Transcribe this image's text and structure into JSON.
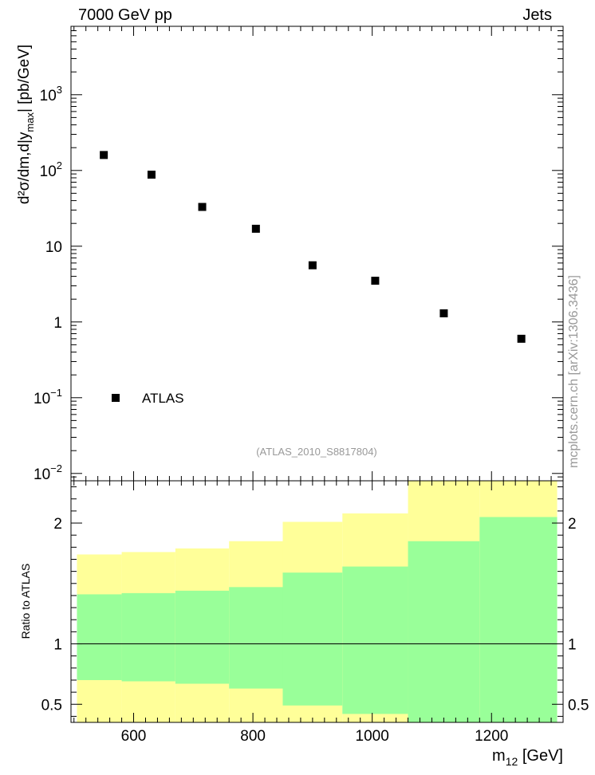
{
  "header": {
    "left": "7000 GeV pp",
    "right": "Jets"
  },
  "watermark": "mcplots.cern.ch [arXiv:1306.3436]",
  "colors": {
    "band_outer": "#ffff99",
    "band_inner": "#99ff99",
    "marker": "#000000"
  },
  "chart_data": [
    {
      "type": "scatter",
      "id": "main",
      "ylabel": {
        "main": "d²σ/dm,d|y",
        "sub": "max",
        "tail": "| [pb/GeV]"
      },
      "xlim": [
        495,
        1320
      ],
      "ylim": [
        0.008,
        8000
      ],
      "yscale": "log",
      "y_ticks": [
        {
          "value": 0.01,
          "base": "10",
          "exp": "−2"
        },
        {
          "value": 0.1,
          "base": "10",
          "exp": "−1"
        },
        {
          "value": 1,
          "base": "1",
          "exp": ""
        },
        {
          "value": 10,
          "base": "10",
          "exp": ""
        },
        {
          "value": 100,
          "base": "10",
          "exp": "2"
        },
        {
          "value": 1000,
          "base": "10",
          "exp": "3"
        }
      ],
      "series": [
        {
          "name": "ATLAS",
          "x": [
            550,
            630,
            715,
            805,
            900,
            1005,
            1120,
            1250
          ],
          "y": [
            160,
            88,
            33,
            17,
            5.6,
            3.5,
            1.3,
            0.6
          ]
        }
      ],
      "legend": {
        "label": "ATLAS",
        "position": "bottom-left"
      },
      "annotation": "(ATLAS_2010_S8817804)"
    },
    {
      "type": "area",
      "id": "ratio",
      "ylabel": "Ratio to ATLAS",
      "xlabel": {
        "main": "m",
        "sub": "12",
        "tail": " [GeV]"
      },
      "xlim": [
        495,
        1320
      ],
      "ylim": [
        0.35,
        2.35
      ],
      "x_ticks": [
        600,
        800,
        1000,
        1200
      ],
      "y_ticks": [
        {
          "value": 0.5,
          "label": "0.5"
        },
        {
          "value": 1,
          "label": "1"
        },
        {
          "value": 2,
          "label": "2"
        }
      ],
      "reference_line": 1,
      "bins": [
        {
          "lo": 505,
          "hi": 580,
          "outer": [
            0.0,
            1.74
          ],
          "inner": [
            0.7,
            1.41
          ]
        },
        {
          "lo": 580,
          "hi": 670,
          "outer": [
            0.0,
            1.76
          ],
          "inner": [
            0.69,
            1.42
          ]
        },
        {
          "lo": 670,
          "hi": 760,
          "outer": [
            0.0,
            1.79
          ],
          "inner": [
            0.67,
            1.44
          ]
        },
        {
          "lo": 760,
          "hi": 850,
          "outer": [
            0.0,
            1.85
          ],
          "inner": [
            0.63,
            1.47
          ]
        },
        {
          "lo": 850,
          "hi": 950,
          "outer": [
            0.0,
            2.01
          ],
          "inner": [
            0.49,
            1.59
          ]
        },
        {
          "lo": 950,
          "hi": 1060,
          "outer": [
            0.0,
            2.08
          ],
          "inner": [
            0.42,
            1.64
          ]
        },
        {
          "lo": 1060,
          "hi": 1180,
          "outer": [
            0.0,
            2.35
          ],
          "inner": [
            0.0,
            1.85
          ]
        },
        {
          "lo": 1180,
          "hi": 1310,
          "outer": [
            0.0,
            2.35
          ],
          "inner": [
            0.0,
            2.05
          ]
        }
      ]
    }
  ]
}
